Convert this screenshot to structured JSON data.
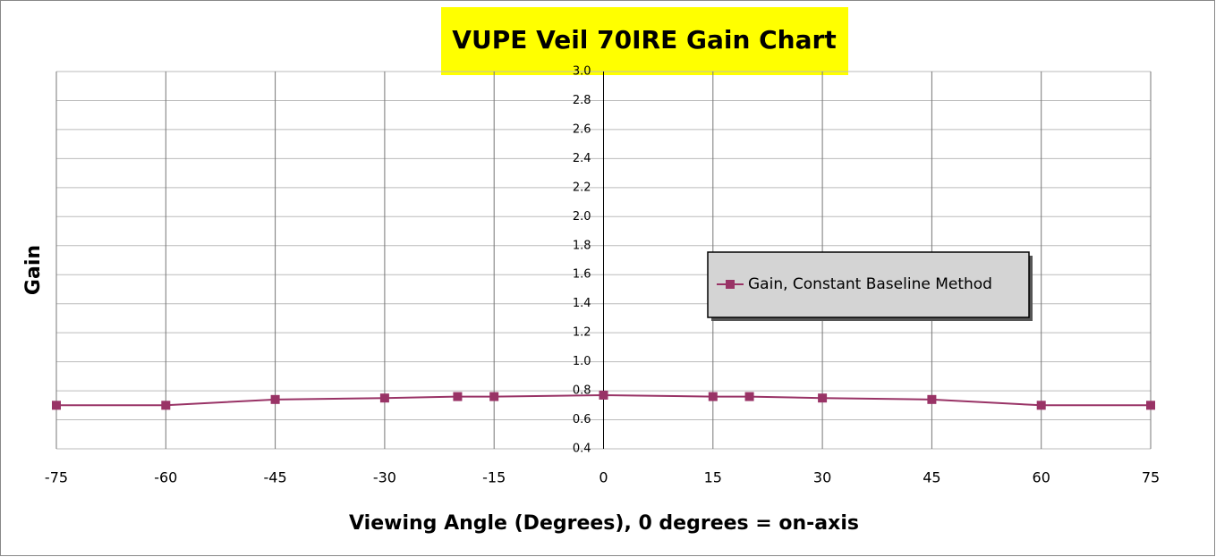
{
  "chart_data": {
    "type": "line",
    "title": "VUPE Veil 70IRE Gain Chart",
    "x_label": "Viewing Angle (Degrees), 0 degrees = on-axis",
    "y_label": "Gain",
    "x": [
      -75,
      -60,
      -45,
      -30,
      -20,
      -15,
      0,
      15,
      20,
      30,
      45,
      60,
      75
    ],
    "series": [
      {
        "name": "Gain, Constant Baseline Method",
        "color": "#993366",
        "values": [
          0.7,
          0.7,
          0.74,
          0.75,
          0.76,
          0.76,
          0.77,
          0.76,
          0.76,
          0.75,
          0.74,
          0.7,
          0.7
        ]
      }
    ],
    "xlim": [
      -75,
      75
    ],
    "xticks": [
      -75,
      -60,
      -45,
      -30,
      -15,
      0,
      15,
      30,
      45,
      60,
      75
    ],
    "ylim": [
      0.4,
      3.0
    ],
    "yticks": [
      0.4,
      0.6,
      0.8,
      {
        "value": 1.0,
        "label": "1.0"
      },
      1.2,
      1.4,
      1.6,
      1.8,
      {
        "value": 2.0,
        "label": "2.0"
      },
      2.2,
      2.4,
      2.6,
      2.8,
      {
        "value": 3.0,
        "label": "3.0"
      }
    ],
    "grid": true,
    "legend": "right"
  }
}
